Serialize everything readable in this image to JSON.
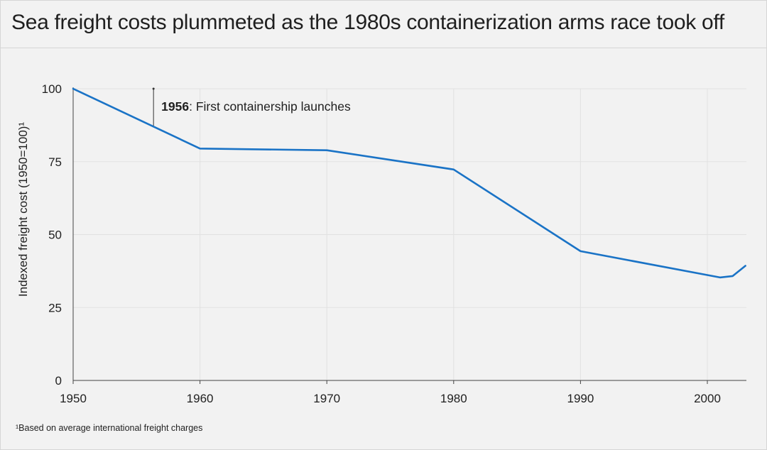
{
  "title": "Sea freight costs plummeted as the 1980s containerization arms race took off",
  "footnote": "¹Based on average international freight charges",
  "chart_data": {
    "type": "line",
    "title": "Sea freight costs plummeted as the 1980s containerization arms race took off",
    "xlabel": "",
    "ylabel": "Indexed freight cost (1950=100)¹",
    "xlim": [
      1950,
      2003
    ],
    "ylim": [
      0,
      100
    ],
    "x_ticks": [
      1950,
      1960,
      1970,
      1980,
      1990,
      2000
    ],
    "y_ticks": [
      0,
      25,
      50,
      75,
      100
    ],
    "grid": true,
    "line_color": "#1a73c6",
    "series": [
      {
        "x": [
          1950,
          1960,
          1970,
          1980,
          1990,
          2001,
          2002,
          2003
        ],
        "values": [
          100,
          79.5,
          78.9,
          72.3,
          44.3,
          35.3,
          35.8,
          39.3
        ]
      }
    ],
    "annotations": [
      {
        "x": 1956,
        "bold": "1956",
        "text": ": First containership launches"
      }
    ]
  }
}
